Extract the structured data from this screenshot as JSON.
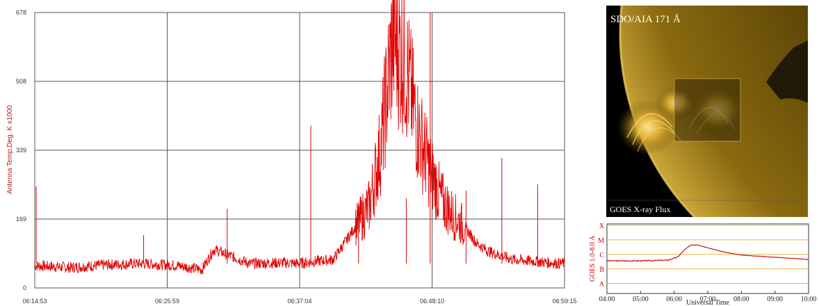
{
  "chart_data": [
    {
      "type": "line",
      "title": "",
      "xlabel": "",
      "ylabel": "Antenna Temp.Deg. K x1000",
      "ylim": [
        0,
        678
      ],
      "y_ticks": [
        "678",
        "508",
        "339",
        "169",
        "0"
      ],
      "x_ticks": [
        "06:14:53",
        "06:25:59",
        "06:37:04",
        "06:48:10",
        "06:59:15"
      ],
      "grid": true,
      "series_color": "#e00000",
      "series": [
        {
          "values_x_minutes": [
            0,
            3,
            6,
            9,
            12,
            14,
            15,
            18,
            21,
            22,
            25,
            28,
            29,
            30,
            31,
            32,
            33,
            34,
            35,
            36,
            37,
            38,
            40,
            42,
            44,
            45,
            46,
            48,
            50,
            52,
            55,
            58,
            61,
            64,
            67,
            70,
            73
          ],
          "values_y": [
            55,
            50,
            57,
            60,
            55,
            45,
            95,
            60,
            62,
            60,
            70,
            200,
            350,
            620,
            560,
            400,
            300,
            220,
            180,
            150,
            110,
            90,
            70,
            65,
            60,
            62,
            58,
            60,
            55,
            60,
            58,
            62,
            60,
            55,
            58,
            52,
            55
          ]
        }
      ],
      "spikes": [
        {
          "x": "06:15",
          "y": 250
        },
        {
          "x": "06:24",
          "y": 130
        },
        {
          "x": "06:31",
          "y": 195
        },
        {
          "x": "06:38",
          "y": 400
        },
        {
          "x": "06:42",
          "y": 210
        },
        {
          "x": "06:46",
          "y": 220
        },
        {
          "x": "06:48",
          "y": 678
        },
        {
          "x": "06:51",
          "y": 240
        },
        {
          "x": "06:54",
          "y": 320
        },
        {
          "x": "06:57",
          "y": 255
        }
      ]
    },
    {
      "type": "line",
      "title": "GOES X-ray Flux",
      "xlabel": "Universal Time",
      "ylabel": "GOES 1.0-8.0 A",
      "x_ticks": [
        "04:00",
        "05:00",
        "06:00",
        "07:00",
        "08:00",
        "09:00",
        "10:00"
      ],
      "y_classes": [
        "X",
        "M",
        "C",
        "B",
        "A"
      ],
      "grid_color": "#e8b840",
      "series_color": "#d01010",
      "series": [
        {
          "x_hours": [
            4.0,
            5.0,
            5.8,
            6.1,
            6.3,
            6.5,
            6.7,
            7.0,
            7.5,
            8.0,
            9.0,
            10.0
          ],
          "class_level": [
            2.55,
            2.55,
            2.6,
            2.8,
            3.3,
            3.65,
            3.65,
            3.45,
            3.15,
            2.95,
            2.8,
            2.65
          ]
        }
      ]
    }
  ],
  "solar_image": {
    "label": "SDO/AIA 171 Å",
    "caption": "GOES X-ray Flux"
  }
}
